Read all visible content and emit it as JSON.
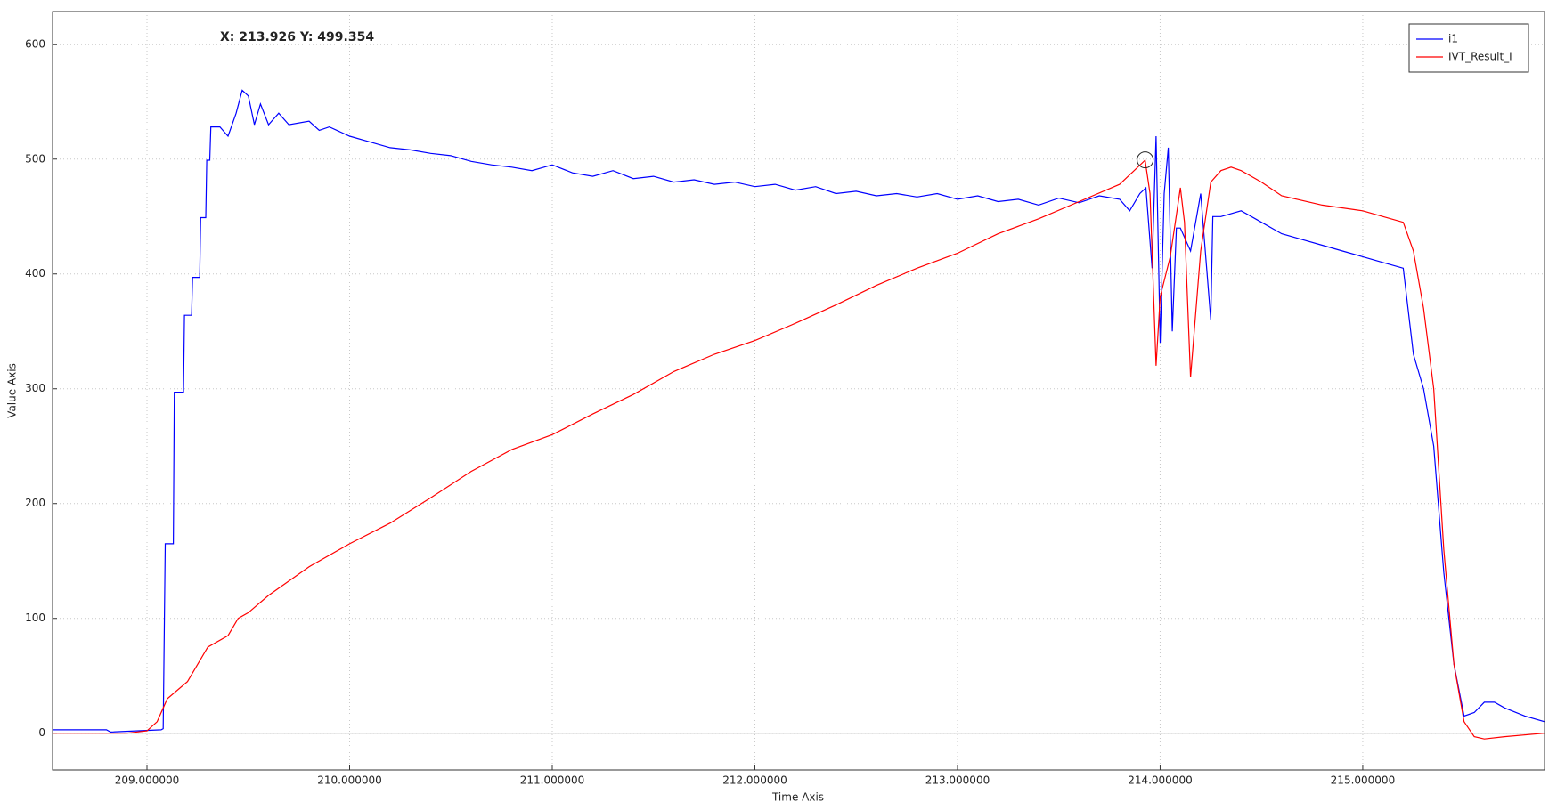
{
  "chart_data": {
    "type": "line",
    "xlabel": "Time Axis",
    "ylabel": "Value Axis",
    "xlim": [
      208.534,
      215.897
    ],
    "ylim": [
      -32,
      628.5
    ],
    "xticks": [
      {
        "value": 209,
        "label": "209.000000"
      },
      {
        "value": 210,
        "label": "210.000000"
      },
      {
        "value": 211,
        "label": "211.000000"
      },
      {
        "value": 212,
        "label": "212.000000"
      },
      {
        "value": 213,
        "label": "213.000000"
      },
      {
        "value": 214,
        "label": "214.000000"
      },
      {
        "value": 215,
        "label": "215.000000"
      }
    ],
    "yticks": [
      0,
      100,
      200,
      300,
      400,
      500,
      600
    ],
    "grid": true,
    "legend": "upper right",
    "cursor": {
      "x": 213.926,
      "y": 499.354,
      "label": "X: 213.926 Y: 499.354"
    },
    "series": [
      {
        "name": "i1",
        "color": "#0000ff",
        "x": [
          208.534,
          208.8,
          208.82,
          209.07,
          209.08,
          209.09,
          209.13,
          209.135,
          209.18,
          209.185,
          209.22,
          209.225,
          209.26,
          209.265,
          209.29,
          209.295,
          209.31,
          209.315,
          209.36,
          209.4,
          209.44,
          209.47,
          209.5,
          209.53,
          209.56,
          209.6,
          209.65,
          209.7,
          209.8,
          209.85,
          209.9,
          210.0,
          210.1,
          210.2,
          210.3,
          210.4,
          210.5,
          210.6,
          210.7,
          210.8,
          210.9,
          211.0,
          211.1,
          211.2,
          211.3,
          211.4,
          211.5,
          211.6,
          211.7,
          211.8,
          211.9,
          212.0,
          212.1,
          212.2,
          212.3,
          212.4,
          212.5,
          212.6,
          212.7,
          212.8,
          212.9,
          213.0,
          213.1,
          213.2,
          213.3,
          213.4,
          213.5,
          213.6,
          213.7,
          213.8,
          213.85,
          213.9,
          213.93,
          213.96,
          213.98,
          214.0,
          214.02,
          214.04,
          214.06,
          214.08,
          214.1,
          214.15,
          214.2,
          214.25,
          214.26,
          214.3,
          214.4,
          214.5,
          214.6,
          214.7,
          214.8,
          214.9,
          215.0,
          215.1,
          215.2,
          215.25,
          215.3,
          215.35,
          215.4,
          215.45,
          215.5,
          215.55,
          215.6,
          215.65,
          215.7,
          215.8,
          215.897
        ],
        "values": [
          3,
          3,
          1,
          3,
          4,
          165,
          165,
          297,
          297,
          364,
          364,
          397,
          397,
          449,
          449,
          499,
          499,
          528,
          528,
          520,
          540,
          560,
          555,
          530,
          548,
          530,
          540,
          530,
          533,
          525,
          528,
          520,
          515,
          510,
          508,
          505,
          503,
          498,
          495,
          493,
          490,
          495,
          488,
          485,
          490,
          483,
          485,
          480,
          482,
          478,
          480,
          476,
          478,
          473,
          476,
          470,
          472,
          468,
          470,
          467,
          470,
          465,
          468,
          463,
          465,
          460,
          466,
          462,
          468,
          465,
          455,
          470,
          475,
          405,
          520,
          340,
          470,
          510,
          350,
          440,
          440,
          420,
          470,
          360,
          450,
          450,
          455,
          445,
          435,
          430,
          425,
          420,
          415,
          410,
          405,
          330,
          300,
          250,
          140,
          60,
          15,
          18,
          27,
          27,
          22,
          15,
          10
        ]
      },
      {
        "name": "IVT_Result_I",
        "color": "#ff0000",
        "x": [
          208.534,
          208.9,
          209.0,
          209.05,
          209.1,
          209.2,
          209.3,
          209.4,
          209.45,
          209.5,
          209.6,
          209.8,
          210.0,
          210.2,
          210.4,
          210.6,
          210.8,
          211.0,
          211.2,
          211.4,
          211.6,
          211.8,
          212.0,
          212.2,
          212.4,
          212.6,
          212.8,
          213.0,
          213.2,
          213.4,
          213.6,
          213.8,
          213.926,
          213.95,
          213.98,
          214.0,
          214.05,
          214.1,
          214.12,
          214.15,
          214.2,
          214.25,
          214.3,
          214.35,
          214.4,
          214.5,
          214.6,
          214.8,
          215.0,
          215.1,
          215.2,
          215.25,
          215.3,
          215.35,
          215.4,
          215.45,
          215.5,
          215.55,
          215.6,
          215.7,
          215.897
        ],
        "values": [
          0,
          0,
          2,
          10,
          30,
          45,
          75,
          85,
          100,
          105,
          120,
          145,
          165,
          183,
          205,
          228,
          247,
          260,
          278,
          295,
          315,
          330,
          342,
          357,
          373,
          390,
          405,
          418,
          435,
          448,
          463,
          478,
          499,
          470,
          320,
          380,
          415,
          475,
          445,
          310,
          420,
          480,
          490,
          493,
          490,
          480,
          468,
          460,
          455,
          450,
          445,
          420,
          370,
          300,
          160,
          60,
          10,
          -3,
          -5,
          -3,
          0
        ]
      }
    ]
  }
}
